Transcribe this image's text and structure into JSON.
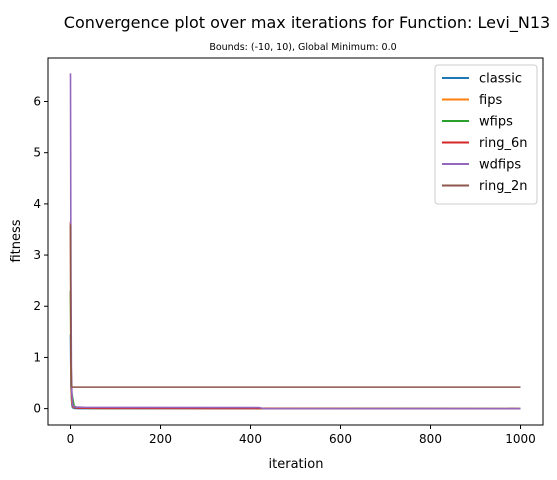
{
  "chart_data": {
    "type": "line",
    "title": "Convergence plot over max iterations for Function: Levi_N13",
    "subtitle": "Bounds: (-10, 10), Global Minimum: 0.0",
    "xlabel": "iteration",
    "ylabel": "fitness",
    "xlim": [
      -50,
      1050
    ],
    "ylim": [
      -0.32,
      6.85
    ],
    "xticks": [
      0,
      200,
      400,
      600,
      800,
      1000
    ],
    "yticks": [
      0,
      1,
      2,
      3,
      4,
      5,
      6
    ],
    "legend_position": "top-right",
    "series": [
      {
        "name": "classic",
        "color": "#1f77b4",
        "points": [
          [
            0,
            1.45
          ],
          [
            1,
            0.45
          ],
          [
            2,
            0.22
          ],
          [
            3,
            0.08
          ],
          [
            4,
            0.03
          ],
          [
            6,
            0.01
          ],
          [
            10,
            0.003
          ],
          [
            20,
            0.001
          ],
          [
            1000,
            0.0
          ]
        ]
      },
      {
        "name": "fips",
        "color": "#ff7f0e",
        "points": [
          [
            0,
            2.3
          ],
          [
            1,
            0.7
          ],
          [
            2,
            0.3
          ],
          [
            3,
            0.12
          ],
          [
            5,
            0.04
          ],
          [
            8,
            0.02
          ],
          [
            20,
            0.01
          ],
          [
            50,
            0.005
          ],
          [
            1000,
            0.0
          ]
        ]
      },
      {
        "name": "wfips",
        "color": "#2ca02c",
        "points": [
          [
            0,
            2.3
          ],
          [
            1,
            1.0
          ],
          [
            2,
            0.5
          ],
          [
            3,
            0.3
          ],
          [
            5,
            0.2
          ],
          [
            6,
            0.15
          ],
          [
            8,
            0.05
          ],
          [
            15,
            0.02
          ],
          [
            40,
            0.005
          ],
          [
            1000,
            0.0
          ]
        ]
      },
      {
        "name": "ring_6n",
        "color": "#d62728",
        "points": [
          [
            0,
            3.65
          ],
          [
            1,
            1.2
          ],
          [
            2,
            0.5
          ],
          [
            3,
            0.2
          ],
          [
            5,
            0.05
          ],
          [
            10,
            0.02
          ],
          [
            20,
            0.01
          ],
          [
            80,
            0.005
          ],
          [
            1000,
            0.0
          ]
        ]
      },
      {
        "name": "wdfips",
        "color": "#9467bd",
        "points": [
          [
            0,
            6.55
          ],
          [
            1,
            2.5
          ],
          [
            2,
            0.8
          ],
          [
            3,
            0.3
          ],
          [
            5,
            0.06
          ],
          [
            10,
            0.03
          ],
          [
            30,
            0.025
          ],
          [
            420,
            0.02
          ],
          [
            430,
            0.0
          ],
          [
            1000,
            0.0
          ]
        ]
      },
      {
        "name": "ring_2n",
        "color": "#8c564b",
        "points": [
          [
            0,
            3.6
          ],
          [
            1,
            0.9
          ],
          [
            2,
            0.5
          ],
          [
            3,
            0.42
          ],
          [
            1000,
            0.42
          ]
        ]
      }
    ]
  }
}
